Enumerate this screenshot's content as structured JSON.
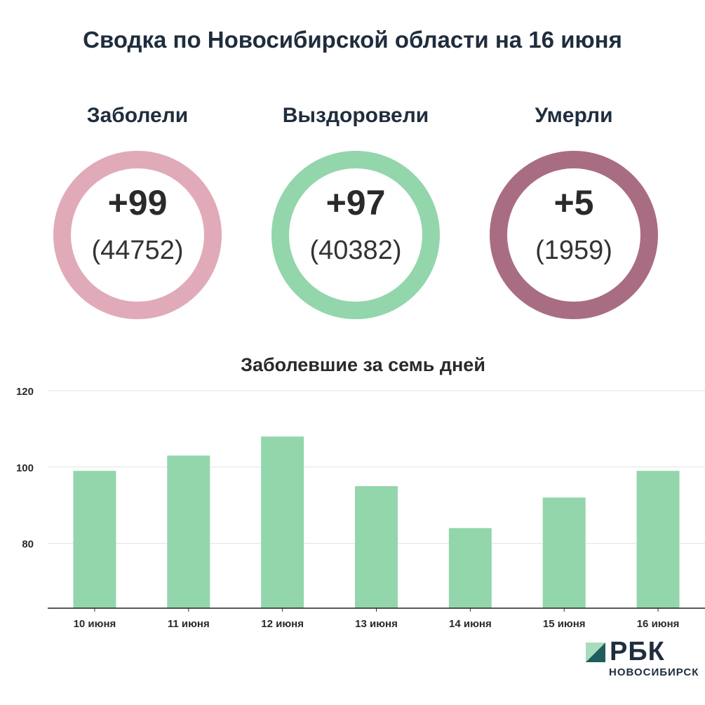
{
  "title": "Сводка по Новосибирской области на 16 июня",
  "stats": [
    {
      "label": "Заболели",
      "delta": "+99",
      "total": "(44752)",
      "color": "#e0aab9"
    },
    {
      "label": "Выздоровели",
      "delta": "+97",
      "total": "(40382)",
      "color": "#93d6ac"
    },
    {
      "label": "Умерли",
      "delta": "+5",
      "total": "(1959)",
      "color": "#a96d83"
    }
  ],
  "chart_title": "Заболевшие за семь дней",
  "chart_data": {
    "type": "bar",
    "title": "Заболевшие за семь дней",
    "categories": [
      "10 июня",
      "11 июня",
      "12 июня",
      "13 июня",
      "14 июня",
      "15 июня",
      "16 июня"
    ],
    "values": [
      99,
      103,
      108,
      95,
      84,
      92,
      99
    ],
    "ylim": [
      63,
      120
    ],
    "yticks": [
      80,
      100,
      120
    ],
    "grid": true,
    "bar_color": "#93d6ac"
  },
  "logo": {
    "name": "РБК",
    "sub": "НОВОСИБИРСК"
  }
}
